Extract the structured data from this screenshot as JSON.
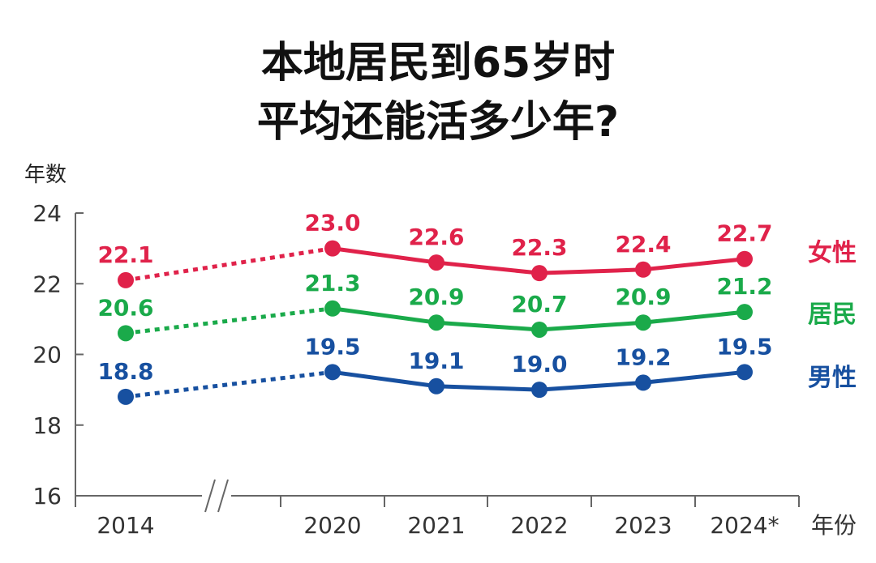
{
  "title_line1": "本地居民到65岁时",
  "title_line2": "平均还能活多少年?",
  "chart_data": {
    "type": "line",
    "title": "本地居民到65岁时平均还能活多少年?",
    "ylabel": "年数",
    "xlabel": "年份",
    "ylim": [
      16,
      24
    ],
    "yticks": [
      16,
      18,
      20,
      22,
      24
    ],
    "categories": [
      "2014",
      "2020",
      "2021",
      "2022",
      "2023",
      "2024*"
    ],
    "axis_break_between": [
      "2014",
      "2020"
    ],
    "series": [
      {
        "name": "女性",
        "color": "#e0224a",
        "values": [
          22.1,
          23.0,
          22.6,
          22.3,
          22.4,
          22.7
        ],
        "labels": [
          "22.1",
          "23.0",
          "22.6",
          "22.3",
          "22.4",
          "22.7"
        ]
      },
      {
        "name": "居民",
        "color": "#1aaa4a",
        "values": [
          20.6,
          21.3,
          20.9,
          20.7,
          20.9,
          21.2
        ],
        "labels": [
          "20.6",
          "21.3",
          "20.9",
          "20.7",
          "20.9",
          "21.2"
        ]
      },
      {
        "name": "男性",
        "color": "#1750a0",
        "values": [
          18.8,
          19.5,
          19.1,
          19.0,
          19.2,
          19.5
        ],
        "labels": [
          "18.8",
          "19.5",
          "19.1",
          "19.0",
          "19.2",
          "19.5"
        ]
      }
    ]
  }
}
